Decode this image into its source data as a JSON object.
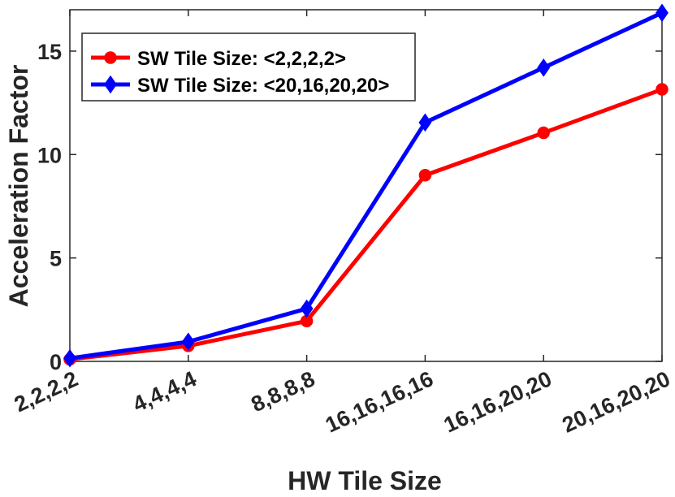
{
  "chart_data": {
    "type": "line",
    "categories": [
      "2,2,2,2",
      "4,4,4,4",
      "8,8,8,8",
      "16,16,16,16",
      "16,16,20,20",
      "20,16,20,20"
    ],
    "series": [
      {
        "name": "SW Tile Size: <2,2,2,2>",
        "color": "#ff0000",
        "marker": "circle",
        "values": [
          0.1,
          0.75,
          1.95,
          9.0,
          11.05,
          13.15
        ]
      },
      {
        "name": "SW Tile Size: <20,16,20,20>",
        "color": "#0000ff",
        "marker": "diamond",
        "values": [
          0.15,
          0.95,
          2.55,
          11.55,
          14.2,
          16.85
        ]
      }
    ],
    "xlabel": "HW Tile Size",
    "ylabel": "Acceleration Factor",
    "ylim": [
      0,
      17
    ],
    "yticks": [
      0,
      5,
      10,
      15
    ],
    "grid": false,
    "legend_position": "top-left"
  }
}
